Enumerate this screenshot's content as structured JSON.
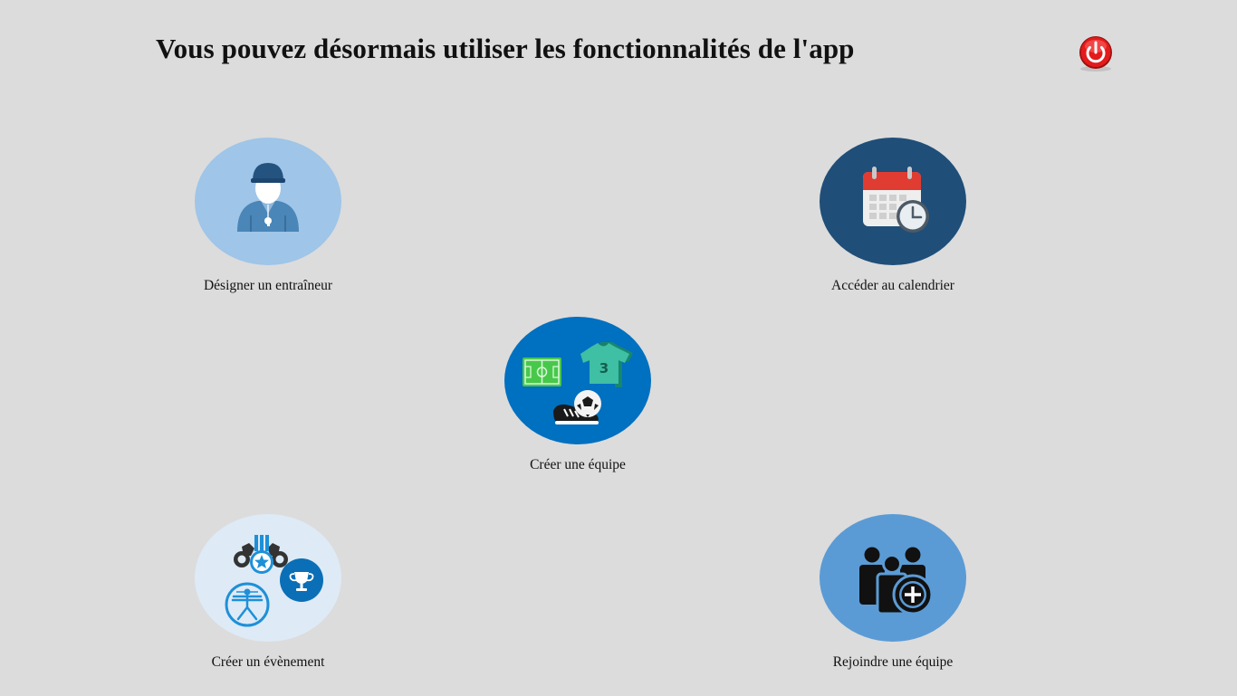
{
  "header": {
    "title": "Vous pouvez désormais utiliser les fonctionnalités de l'app",
    "power_icon": "power-button-icon"
  },
  "actions": [
    {
      "label": "Désigner un entraîneur",
      "icon": "coach-whistle-icon",
      "color": "#9fc5e8"
    },
    {
      "label": "Accéder au calendrier",
      "icon": "calendar-clock-icon",
      "color": "#1f4e79"
    },
    {
      "label": "Créer une équipe",
      "icon": "team-gear-icon",
      "color": "#0070c0"
    },
    {
      "label": "Créer un évènement",
      "icon": "event-medals-icon",
      "color": "#deeaf6"
    },
    {
      "label": "Rejoindre une équipe",
      "icon": "join-group-icon",
      "color": "#5b9bd5"
    }
  ],
  "colors": {
    "background": "#dcdcdc",
    "power_red": "#e02020",
    "accent_blue": "#0070c0"
  }
}
